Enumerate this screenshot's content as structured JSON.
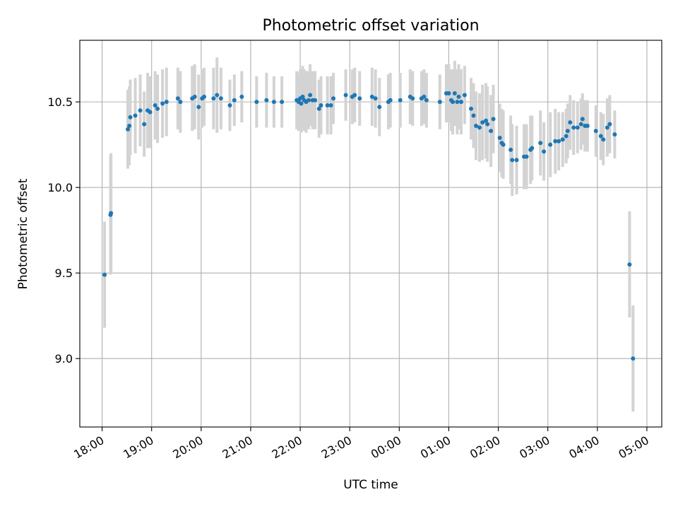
{
  "chart_data": {
    "type": "scatter",
    "title": "Photometric offset variation",
    "xlabel": "UTC time",
    "ylabel": "Photometric offset",
    "x_unit": "hours UTC (values above 24 are after midnight)",
    "xlim": [
      17.55,
      29.3
    ],
    "ylim": [
      8.6,
      10.86
    ],
    "grid": true,
    "x_ticks": [
      {
        "value": 18,
        "label": "18:00"
      },
      {
        "value": 19,
        "label": "19:00"
      },
      {
        "value": 20,
        "label": "20:00"
      },
      {
        "value": 21,
        "label": "21:00"
      },
      {
        "value": 22,
        "label": "22:00"
      },
      {
        "value": 23,
        "label": "23:00"
      },
      {
        "value": 24,
        "label": "00:00"
      },
      {
        "value": 25,
        "label": "01:00"
      },
      {
        "value": 26,
        "label": "02:00"
      },
      {
        "value": 27,
        "label": "03:00"
      },
      {
        "value": 28,
        "label": "04:00"
      },
      {
        "value": 29,
        "label": "05:00"
      }
    ],
    "y_ticks": [
      {
        "value": 9.0,
        "label": "9.0"
      },
      {
        "value": 9.5,
        "label": "9.5"
      },
      {
        "value": 10.0,
        "label": "10.0"
      },
      {
        "value": 10.5,
        "label": "10.5"
      }
    ],
    "colors": {
      "marker": "#1f77b4",
      "errorbar": "#d3d3d3",
      "grid": "#b0b0b0"
    },
    "points": [
      [
        18.05,
        9.49,
        0.31
      ],
      [
        18.17,
        9.84,
        0.35
      ],
      [
        18.18,
        9.85,
        0.35
      ],
      [
        18.52,
        10.34,
        0.23
      ],
      [
        18.55,
        10.36,
        0.23
      ],
      [
        18.57,
        10.41,
        0.22
      ],
      [
        18.67,
        10.42,
        0.22
      ],
      [
        18.77,
        10.45,
        0.21
      ],
      [
        18.85,
        10.37,
        0.19
      ],
      [
        18.92,
        10.45,
        0.22
      ],
      [
        18.97,
        10.44,
        0.21
      ],
      [
        19.07,
        10.48,
        0.2
      ],
      [
        19.12,
        10.46,
        0.2
      ],
      [
        19.22,
        10.49,
        0.2
      ],
      [
        19.3,
        10.5,
        0.2
      ],
      [
        19.53,
        10.52,
        0.18
      ],
      [
        19.58,
        10.5,
        0.18
      ],
      [
        19.82,
        10.52,
        0.19
      ],
      [
        19.87,
        10.53,
        0.19
      ],
      [
        19.95,
        10.47,
        0.19
      ],
      [
        20.02,
        10.52,
        0.17
      ],
      [
        20.06,
        10.53,
        0.17
      ],
      [
        20.25,
        10.52,
        0.18
      ],
      [
        20.32,
        10.54,
        0.22
      ],
      [
        20.4,
        10.52,
        0.18
      ],
      [
        20.58,
        10.48,
        0.15
      ],
      [
        20.67,
        10.51,
        0.15
      ],
      [
        20.82,
        10.53,
        0.15
      ],
      [
        21.12,
        10.5,
        0.15
      ],
      [
        21.32,
        10.51,
        0.16
      ],
      [
        21.47,
        10.5,
        0.15
      ],
      [
        21.63,
        10.5,
        0.15
      ],
      [
        21.93,
        10.51,
        0.17
      ],
      [
        21.97,
        10.5,
        0.17
      ],
      [
        22.0,
        10.52,
        0.17
      ],
      [
        22.02,
        10.49,
        0.17
      ],
      [
        22.05,
        10.53,
        0.18
      ],
      [
        22.08,
        10.51,
        0.18
      ],
      [
        22.12,
        10.5,
        0.18
      ],
      [
        22.17,
        10.51,
        0.17
      ],
      [
        22.2,
        10.54,
        0.18
      ],
      [
        22.25,
        10.51,
        0.17
      ],
      [
        22.3,
        10.51,
        0.17
      ],
      [
        22.38,
        10.46,
        0.17
      ],
      [
        22.42,
        10.48,
        0.17
      ],
      [
        22.55,
        10.48,
        0.17
      ],
      [
        22.62,
        10.48,
        0.17
      ],
      [
        22.67,
        10.52,
        0.15
      ],
      [
        22.92,
        10.54,
        0.15
      ],
      [
        23.05,
        10.53,
        0.16
      ],
      [
        23.1,
        10.54,
        0.16
      ],
      [
        23.2,
        10.52,
        0.16
      ],
      [
        23.45,
        10.53,
        0.17
      ],
      [
        23.52,
        10.52,
        0.17
      ],
      [
        23.6,
        10.47,
        0.17
      ],
      [
        23.78,
        10.5,
        0.16
      ],
      [
        23.82,
        10.51,
        0.16
      ],
      [
        24.02,
        10.51,
        0.16
      ],
      [
        24.22,
        10.53,
        0.16
      ],
      [
        24.27,
        10.52,
        0.16
      ],
      [
        24.45,
        10.52,
        0.16
      ],
      [
        24.5,
        10.53,
        0.16
      ],
      [
        24.55,
        10.51,
        0.16
      ],
      [
        24.82,
        10.5,
        0.16
      ],
      [
        24.95,
        10.55,
        0.17
      ],
      [
        25.0,
        10.55,
        0.17
      ],
      [
        25.05,
        10.51,
        0.18
      ],
      [
        25.08,
        10.5,
        0.19
      ],
      [
        25.12,
        10.55,
        0.19
      ],
      [
        25.17,
        10.5,
        0.19
      ],
      [
        25.2,
        10.53,
        0.19
      ],
      [
        25.25,
        10.5,
        0.19
      ],
      [
        25.32,
        10.54,
        0.17
      ],
      [
        25.45,
        10.46,
        0.18
      ],
      [
        25.5,
        10.42,
        0.19
      ],
      [
        25.55,
        10.36,
        0.2
      ],
      [
        25.62,
        10.35,
        0.2
      ],
      [
        25.68,
        10.38,
        0.22
      ],
      [
        25.75,
        10.39,
        0.22
      ],
      [
        25.78,
        10.37,
        0.22
      ],
      [
        25.85,
        10.33,
        0.21
      ],
      [
        25.9,
        10.4,
        0.2
      ],
      [
        26.03,
        10.29,
        0.2
      ],
      [
        26.07,
        10.26,
        0.2
      ],
      [
        26.1,
        10.25,
        0.2
      ],
      [
        26.25,
        10.22,
        0.2
      ],
      [
        26.28,
        10.16,
        0.21
      ],
      [
        26.37,
        10.16,
        0.2
      ],
      [
        26.52,
        10.18,
        0.19
      ],
      [
        26.57,
        10.18,
        0.19
      ],
      [
        26.65,
        10.22,
        0.2
      ],
      [
        26.68,
        10.23,
        0.19
      ],
      [
        26.85,
        10.26,
        0.19
      ],
      [
        26.92,
        10.21,
        0.17
      ],
      [
        27.05,
        10.25,
        0.19
      ],
      [
        27.15,
        10.27,
        0.19
      ],
      [
        27.22,
        10.27,
        0.17
      ],
      [
        27.3,
        10.28,
        0.16
      ],
      [
        27.37,
        10.3,
        0.16
      ],
      [
        27.4,
        10.33,
        0.16
      ],
      [
        27.45,
        10.38,
        0.16
      ],
      [
        27.52,
        10.35,
        0.16
      ],
      [
        27.6,
        10.35,
        0.15
      ],
      [
        27.67,
        10.37,
        0.15
      ],
      [
        27.7,
        10.4,
        0.15
      ],
      [
        27.75,
        10.36,
        0.15
      ],
      [
        27.8,
        10.36,
        0.15
      ],
      [
        27.97,
        10.33,
        0.15
      ],
      [
        28.07,
        10.3,
        0.14
      ],
      [
        28.12,
        10.28,
        0.15
      ],
      [
        28.2,
        10.35,
        0.17
      ],
      [
        28.25,
        10.37,
        0.17
      ],
      [
        28.35,
        10.31,
        0.14
      ],
      [
        28.65,
        9.55,
        0.31
      ],
      [
        28.72,
        9.0,
        0.31
      ]
    ]
  }
}
